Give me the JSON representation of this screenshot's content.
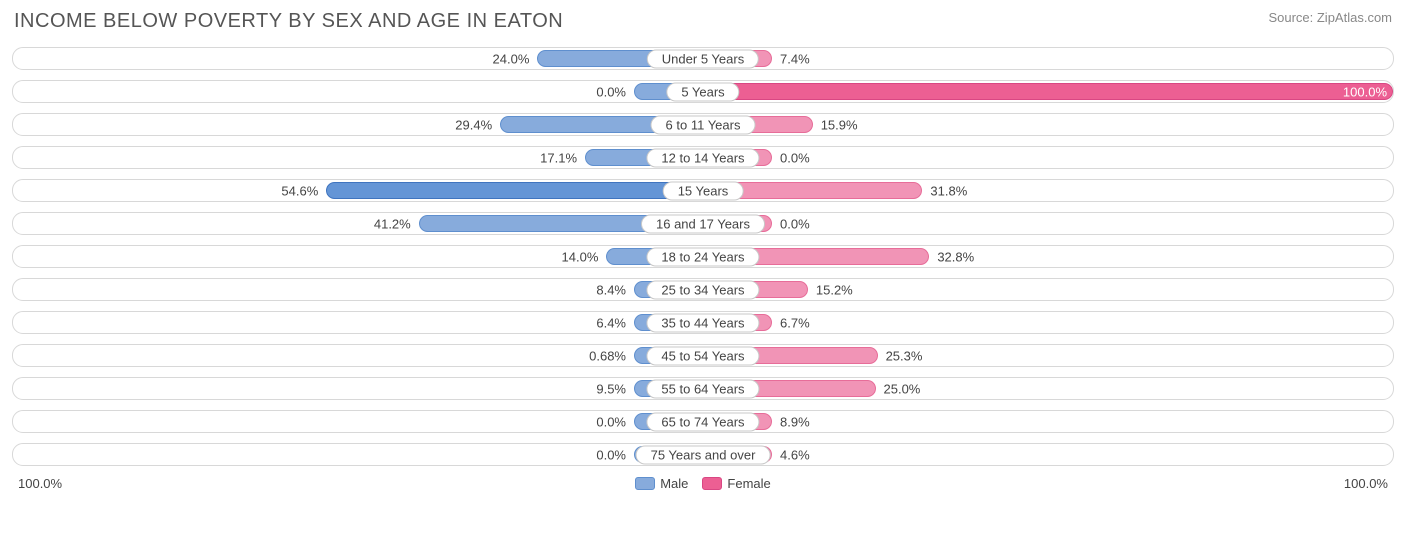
{
  "title": "INCOME BELOW POVERTY BY SEX AND AGE IN EATON",
  "source": "Source: ZipAtlas.com",
  "chart": {
    "type": "diverging-bar",
    "axis_max_pct": 100.0,
    "min_bar_pct": 10.0,
    "track_border_color": "#d8d8d8",
    "track_bg": "#ffffff",
    "label_border_color": "#c9c9c9",
    "text_color": "#444444",
    "male_colors": {
      "fill": "#87abdc",
      "stroke": "#5f8fce"
    },
    "female_colors": {
      "fill": "#f194b6",
      "stroke": "#e76d99"
    },
    "male_colors_strong": {
      "fill": "#6495d6",
      "stroke": "#3f74bf"
    },
    "female_colors_strong": {
      "fill": "#ec5f93",
      "stroke": "#d94783"
    },
    "strong_threshold": 50.0,
    "rows": [
      {
        "label": "Under 5 Years",
        "male": 24.0,
        "female": 7.4
      },
      {
        "label": "5 Years",
        "male": 0.0,
        "female": 100.0
      },
      {
        "label": "6 to 11 Years",
        "male": 29.4,
        "female": 15.9
      },
      {
        "label": "12 to 14 Years",
        "male": 17.1,
        "female": 0.0
      },
      {
        "label": "15 Years",
        "male": 54.6,
        "female": 31.8
      },
      {
        "label": "16 and 17 Years",
        "male": 41.2,
        "female": 0.0
      },
      {
        "label": "18 to 24 Years",
        "male": 14.0,
        "female": 32.8
      },
      {
        "label": "25 to 34 Years",
        "male": 8.4,
        "female": 15.2
      },
      {
        "label": "35 to 44 Years",
        "male": 6.4,
        "female": 6.7
      },
      {
        "label": "45 to 54 Years",
        "male": 0.68,
        "female": 25.3
      },
      {
        "label": "55 to 64 Years",
        "male": 9.5,
        "female": 25.0
      },
      {
        "label": "65 to 74 Years",
        "male": 0.0,
        "female": 8.9
      },
      {
        "label": "75 Years and over",
        "male": 0.0,
        "female": 4.6
      }
    ]
  },
  "legend": {
    "male": "Male",
    "female": "Female"
  },
  "axis": {
    "left": "100.0%",
    "right": "100.0%"
  }
}
